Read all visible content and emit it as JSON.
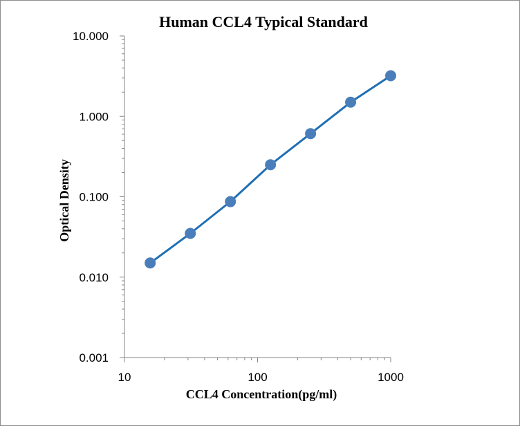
{
  "chart_data": {
    "type": "line",
    "title": "Human CCL4 Typical Standard",
    "xlabel": "CCL4 Concentration(pg/ml)",
    "ylabel": "Optical Density",
    "x_scale": "log",
    "y_scale": "log",
    "xlim": [
      10,
      1000
    ],
    "ylim": [
      0.001,
      10
    ],
    "x_ticks": [
      "10",
      "100",
      "1000"
    ],
    "y_ticks": [
      "10.000",
      "1.000",
      "0.100",
      "0.010",
      "0.001"
    ],
    "grid": false,
    "legend": "none",
    "series": [
      {
        "color": "#1f6fb4",
        "marker_color": "#4a7ebb",
        "x": [
          15.6,
          31.25,
          62.5,
          125,
          250,
          500,
          1000
        ],
        "y": [
          0.015,
          0.035,
          0.087,
          0.25,
          0.61,
          1.5,
          3.2
        ]
      }
    ]
  }
}
